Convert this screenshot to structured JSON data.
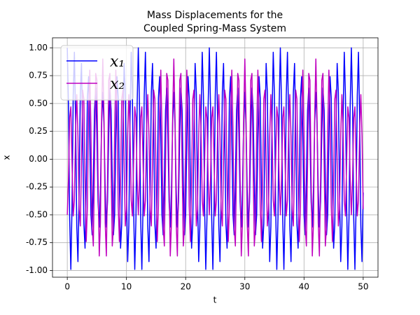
{
  "chart_data": {
    "type": "line",
    "title": [
      "Mass Displacements for the",
      "Coupled Spring-Mass System"
    ],
    "x_label": "t",
    "y_label": "x",
    "xlim": [
      -2.5,
      52.5
    ],
    "xticks": [
      0,
      10,
      20,
      30,
      40,
      50
    ],
    "ylim": [
      -1.06,
      1.09
    ],
    "yticks": [
      {
        "value": -1,
        "label": "-1.00"
      },
      {
        "value": -0.75,
        "label": "-0.75"
      },
      {
        "value": -0.5,
        "label": "-0.50"
      },
      {
        "value": -0.25,
        "label": "-0.25"
      },
      {
        "value": 0,
        "label": "0.00"
      },
      {
        "value": 0.25,
        "label": "0.25"
      },
      {
        "value": 0.5,
        "label": "0.50"
      },
      {
        "value": 0.75,
        "label": "0.75"
      },
      {
        "value": 1,
        "label": "1.00"
      }
    ],
    "grid": true,
    "legend": "upper left",
    "x": [
      0,
      0.2,
      0.4,
      0.6,
      0.8,
      1,
      1.2,
      1.4,
      1.6,
      1.8,
      2,
      2.2,
      2.4,
      2.6,
      2.8,
      3,
      3.2,
      3.4,
      3.6,
      3.8,
      4,
      4.2,
      4.4,
      4.6,
      4.8,
      5,
      5.2,
      5.4,
      5.6,
      5.8,
      6,
      6.2,
      6.4,
      6.6,
      6.8,
      7,
      7.2,
      7.4,
      7.6,
      7.8,
      8,
      8.2,
      8.4,
      8.6,
      8.8,
      9,
      9.2,
      9.4,
      9.6,
      9.8,
      10,
      10.2,
      10.4,
      10.6,
      10.8,
      11,
      11.2,
      11.4,
      11.6,
      11.8,
      12,
      12.2,
      12.4,
      12.6,
      12.8,
      13,
      13.2,
      13.4,
      13.6,
      13.8,
      14,
      14.2,
      14.4,
      14.6,
      14.8,
      15,
      15.2,
      15.4,
      15.6,
      15.8,
      16,
      16.2,
      16.4,
      16.6,
      16.8,
      17,
      17.2,
      17.4,
      17.6,
      17.8,
      18,
      18.2,
      18.4,
      18.6,
      18.8,
      19,
      19.2,
      19.4,
      19.6,
      19.8,
      20,
      20.2,
      20.4,
      20.6,
      20.8,
      21,
      21.2,
      21.4,
      21.6,
      21.8,
      22,
      22.2,
      22.4,
      22.6,
      22.8,
      23,
      23.2,
      23.4,
      23.6,
      23.8,
      24,
      24.2,
      24.4,
      24.6,
      24.8,
      25,
      25.2,
      25.4,
      25.6,
      25.8,
      26,
      26.2,
      26.4,
      26.6,
      26.8,
      27,
      27.2,
      27.4,
      27.6,
      27.8,
      28,
      28.2,
      28.4,
      28.6,
      28.8,
      29,
      29.2,
      29.4,
      29.6,
      29.8,
      30,
      30.2,
      30.4,
      30.6,
      30.8,
      31,
      31.2,
      31.4,
      31.6,
      31.8,
      32,
      32.2,
      32.4,
      32.6,
      32.8,
      33,
      33.2,
      33.4,
      33.6,
      33.8,
      34,
      34.2,
      34.4,
      34.6,
      34.8,
      35,
      35.2,
      35.4,
      35.6,
      35.8,
      36,
      36.2,
      36.4,
      36.6,
      36.8,
      37,
      37.2,
      37.4,
      37.6,
      37.8,
      38,
      38.2,
      38.4,
      38.6,
      38.8,
      39,
      39.2,
      39.4,
      39.6,
      39.8,
      40,
      40.2,
      40.4,
      40.6,
      40.8,
      41,
      41.2,
      41.4,
      41.6,
      41.8,
      42,
      42.2,
      42.4,
      42.6,
      42.8,
      43,
      43.2,
      43.4,
      43.6,
      43.8,
      44,
      44.2,
      44.4,
      44.6,
      44.8,
      45,
      45.2,
      45.4,
      45.6,
      45.8,
      46,
      46.2,
      46.4,
      46.6,
      46.8,
      47,
      47.2,
      47.4,
      47.6,
      47.8,
      48,
      48.2,
      48.4,
      48.6,
      48.8,
      49,
      49.2,
      49.4,
      49.6,
      49.8,
      50
    ],
    "series": [
      {
        "name": "x₁",
        "color": "#0000ff",
        "values": [
          1.0,
          0.48,
          -0.53,
          -0.99,
          -0.42,
          0.57,
          0.96,
          0.36,
          -0.6,
          -0.92,
          -0.3,
          0.6,
          0.86,
          0.25,
          -0.58,
          -0.8,
          -0.22,
          0.55,
          0.74,
          0.2,
          -0.5,
          -0.68,
          -0.2,
          0.44,
          0.64,
          0.23,
          -0.38,
          -0.61,
          -0.27,
          0.32,
          0.6,
          0.32,
          -0.27,
          -0.61,
          -0.38,
          0.23,
          0.64,
          0.44,
          -0.2,
          -0.68,
          -0.5,
          0.2,
          0.74,
          0.55,
          -0.22,
          -0.8,
          -0.58,
          0.25,
          0.86,
          0.6,
          -0.3,
          -0.92,
          -0.6,
          0.36,
          0.96,
          0.57,
          -0.42,
          -0.99,
          -0.53,
          0.48,
          1.0,
          0.48,
          -0.53,
          -0.99,
          -0.42,
          0.57,
          0.96,
          0.36,
          -0.6,
          -0.92,
          -0.3,
          0.6,
          0.86,
          0.25,
          -0.58,
          -0.8,
          -0.22,
          0.55,
          0.74,
          0.2,
          -0.5,
          -0.68,
          -0.2,
          0.44,
          0.64,
          0.23,
          -0.38,
          -0.61,
          -0.27,
          0.32,
          0.6,
          0.32,
          -0.27,
          -0.61,
          -0.38,
          0.23,
          0.64,
          0.44,
          -0.2,
          -0.68,
          -0.5,
          0.2,
          0.74,
          0.55,
          -0.22,
          -0.8,
          -0.58,
          0.25,
          0.86,
          0.6,
          -0.3,
          -0.92,
          -0.6,
          0.36,
          0.96,
          0.57,
          -0.42,
          -0.99,
          -0.53,
          0.48,
          1.0,
          0.48,
          -0.53,
          -0.99,
          -0.42,
          0.57,
          0.96,
          0.36,
          -0.6,
          -0.92,
          -0.3,
          0.6,
          0.86,
          0.25,
          -0.58,
          -0.8,
          -0.22,
          0.55,
          0.74,
          0.2,
          -0.5,
          -0.68,
          -0.2,
          0.44,
          0.64,
          0.23,
          -0.38,
          -0.61,
          -0.27,
          0.32,
          0.6,
          0.32,
          -0.27,
          -0.61,
          -0.38,
          0.23,
          0.64,
          0.44,
          -0.2,
          -0.68,
          -0.5,
          0.2,
          0.74,
          0.55,
          -0.22,
          -0.8,
          -0.58,
          0.25,
          0.86,
          0.6,
          -0.3,
          -0.92,
          -0.6,
          0.36,
          0.96,
          0.57,
          -0.42,
          -0.99,
          -0.53,
          0.48,
          1.0,
          0.48,
          -0.53,
          -0.99,
          -0.42,
          0.57,
          0.96,
          0.36,
          -0.6,
          -0.92,
          -0.3,
          0.6,
          0.86,
          0.25,
          -0.58,
          -0.8,
          -0.22,
          0.55,
          0.74,
          0.2,
          -0.5,
          -0.68,
          -0.2,
          0.44,
          0.64,
          0.23,
          -0.38,
          -0.61,
          -0.27,
          0.32,
          0.6,
          0.32,
          -0.27,
          -0.61,
          -0.38,
          0.23,
          0.64,
          0.44,
          -0.2,
          -0.68,
          -0.5,
          0.2,
          0.74,
          0.55,
          -0.22,
          -0.8,
          -0.58,
          0.25,
          0.86,
          0.6,
          -0.3,
          -0.92,
          -0.6,
          0.36,
          0.96,
          0.57,
          -0.42,
          -0.99,
          -0.53,
          0.48,
          1.0,
          0.48,
          -0.53,
          -0.99,
          -0.42,
          0.57,
          0.96,
          0.36,
          -0.6,
          -0.92,
          -0.3
        ]
      },
      {
        "name": "x₂",
        "color": "#bf00bf",
        "values": [
          -0.5,
          -0.18,
          0.37,
          0.47,
          -0.03,
          -0.51,
          -0.37,
          0.25,
          0.58,
          0.21,
          -0.45,
          -0.6,
          -0.02,
          0.62,
          0.54,
          -0.2,
          -0.74,
          -0.42,
          0.42,
          0.8,
          0.25,
          -0.61,
          -0.78,
          -0.05,
          0.77,
          0.71,
          -0.17,
          -0.87,
          -0.57,
          0.38,
          0.9,
          0.38,
          -0.57,
          -0.87,
          -0.17,
          0.71,
          0.77,
          -0.05,
          -0.78,
          -0.61,
          0.25,
          0.8,
          0.42,
          -0.42,
          -0.74,
          -0.2,
          0.54,
          0.62,
          -0.02,
          -0.6,
          -0.45,
          0.21,
          0.58,
          0.25,
          -0.37,
          -0.51,
          -0.03,
          0.47,
          0.37,
          -0.18,
          -0.5,
          -0.18,
          0.37,
          0.47,
          -0.03,
          -0.51,
          -0.37,
          0.25,
          0.58,
          0.21,
          -0.45,
          -0.6,
          -0.02,
          0.62,
          0.54,
          -0.2,
          -0.74,
          -0.42,
          0.42,
          0.8,
          0.25,
          -0.61,
          -0.78,
          -0.05,
          0.77,
          0.71,
          -0.17,
          -0.87,
          -0.57,
          0.38,
          0.9,
          0.38,
          -0.57,
          -0.87,
          -0.17,
          0.71,
          0.77,
          -0.05,
          -0.78,
          -0.61,
          0.25,
          0.8,
          0.42,
          -0.42,
          -0.74,
          -0.2,
          0.54,
          0.62,
          -0.02,
          -0.6,
          -0.45,
          0.21,
          0.58,
          0.25,
          -0.37,
          -0.51,
          -0.03,
          0.47,
          0.37,
          -0.18,
          -0.5,
          -0.18,
          0.37,
          0.47,
          -0.03,
          -0.51,
          -0.37,
          0.25,
          0.58,
          0.21,
          -0.45,
          -0.6,
          -0.02,
          0.62,
          0.54,
          -0.2,
          -0.74,
          -0.42,
          0.42,
          0.8,
          0.25,
          -0.61,
          -0.78,
          -0.05,
          0.77,
          0.71,
          -0.17,
          -0.87,
          -0.57,
          0.38,
          0.9,
          0.38,
          -0.57,
          -0.87,
          -0.17,
          0.71,
          0.77,
          -0.05,
          -0.78,
          -0.61,
          0.25,
          0.8,
          0.42,
          -0.42,
          -0.74,
          -0.2,
          0.54,
          0.62,
          -0.02,
          -0.6,
          -0.45,
          0.21,
          0.58,
          0.25,
          -0.37,
          -0.51,
          -0.03,
          0.47,
          0.37,
          -0.18,
          -0.5,
          -0.18,
          0.37,
          0.47,
          -0.03,
          -0.51,
          -0.37,
          0.25,
          0.58,
          0.21,
          -0.45,
          -0.6,
          -0.02,
          0.62,
          0.54,
          -0.2,
          -0.74,
          -0.42,
          0.42,
          0.8,
          0.25,
          -0.61,
          -0.78,
          -0.05,
          0.77,
          0.71,
          -0.17,
          -0.87,
          -0.57,
          0.38,
          0.9,
          0.38,
          -0.57,
          -0.87,
          -0.17,
          0.71,
          0.77,
          -0.05,
          -0.78,
          -0.61,
          0.25,
          0.8,
          0.42,
          -0.42,
          -0.74,
          -0.2,
          0.54,
          0.62,
          -0.02,
          -0.6,
          -0.45,
          0.21,
          0.58,
          0.25,
          -0.37,
          -0.51,
          -0.03,
          0.47,
          0.37,
          -0.18,
          -0.5,
          -0.18,
          0.37,
          0.47,
          -0.03,
          -0.51,
          -0.37,
          0.25,
          0.58,
          0.21,
          -0.45
        ]
      }
    ]
  }
}
